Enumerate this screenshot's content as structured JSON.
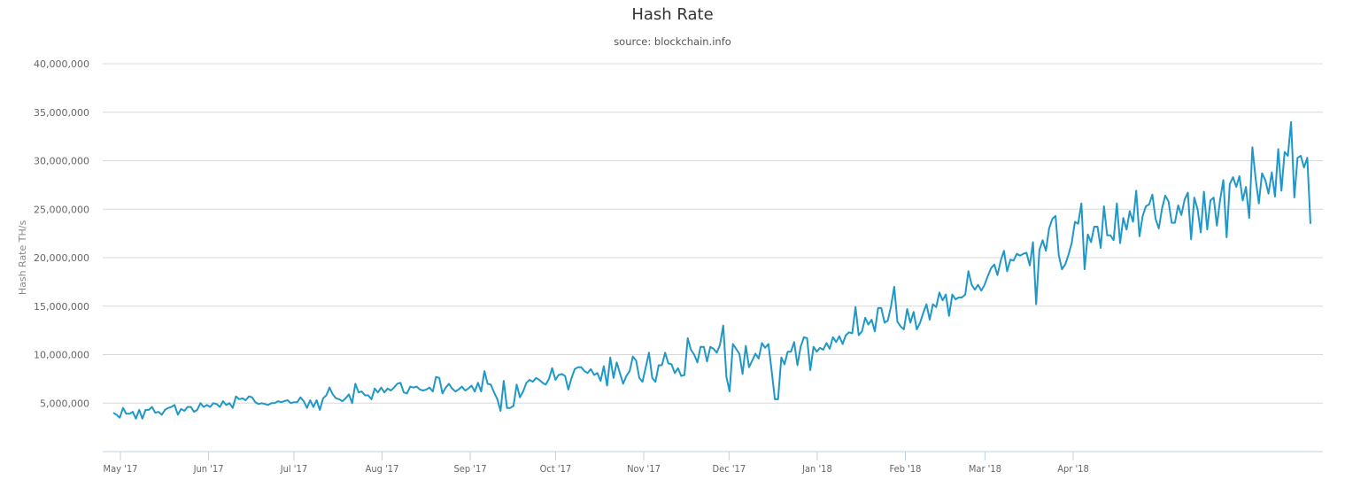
{
  "header": {
    "title": "Hash Rate",
    "subtitle": "source: blockchain.info"
  },
  "colors": {
    "line": "#1f98c7",
    "grid": "#d8d8d8",
    "axis": "#c0d0e0",
    "text": "#666666"
  },
  "chart_data": {
    "type": "line",
    "title": "Hash Rate",
    "subtitle": "source: blockchain.info",
    "xlabel": "",
    "ylabel": "Hash Rate TH/s",
    "ylim": [
      0,
      40000000
    ],
    "yticks": [
      5000000,
      10000000,
      15000000,
      20000000,
      25000000,
      30000000,
      35000000,
      40000000
    ],
    "ytick_labels": [
      "5,000,000",
      "10,000,000",
      "15,000,000",
      "20,000,000",
      "25,000,000",
      "30,000,000",
      "35,000,000",
      "40,000,000"
    ],
    "xticks": [
      {
        "label": "May '17",
        "day": 3
      },
      {
        "label": "Jun '17",
        "day": 34
      },
      {
        "label": "Jul '17",
        "day": 64
      },
      {
        "label": "Aug '17",
        "day": 95
      },
      {
        "label": "Sep '17",
        "day": 126
      },
      {
        "label": "Oct '17",
        "day": 156
      },
      {
        "label": "Nov '17",
        "day": 187
      },
      {
        "label": "Dec '17",
        "day": 217
      },
      {
        "label": "Jan '18",
        "day": 248
      },
      {
        "label": "Feb '18",
        "day": 279
      },
      {
        "label": "Mar '18",
        "day": 307
      },
      {
        "label": "Apr '18",
        "day": 338
      }
    ],
    "x_start": "2017-04-28",
    "x_step": "1 day",
    "grid": true,
    "legend": null,
    "series": [
      {
        "name": "Hash Rate",
        "values": [
          4000000,
          3800000,
          3500000,
          4500000,
          3900000,
          3900000,
          4100000,
          3400000,
          4300000,
          3400000,
          4300000,
          4300000,
          4600000,
          4000000,
          4100000,
          3800000,
          4300000,
          4500000,
          4600000,
          4800000,
          3800000,
          4400000,
          4200000,
          4600000,
          4600000,
          4100000,
          4300000,
          5000000,
          4600000,
          4800000,
          4600000,
          5000000,
          4900000,
          4600000,
          5200000,
          4800000,
          5000000,
          4500000,
          5700000,
          5400000,
          5500000,
          5300000,
          5700000,
          5600000,
          5100000,
          4900000,
          5000000,
          4900000,
          4800000,
          5000000,
          5000000,
          5200000,
          5100000,
          5200000,
          5300000,
          5000000,
          5100000,
          5100000,
          5600000,
          5200000,
          4500000,
          5300000,
          4600000,
          5300000,
          4300000,
          5500000,
          5800000,
          6600000,
          5900000,
          5500000,
          5400000,
          5200000,
          5500000,
          5900000,
          5000000,
          7000000,
          6100000,
          6200000,
          5800000,
          5800000,
          5400000,
          6500000,
          6100000,
          6600000,
          6100000,
          6500000,
          6300000,
          6600000,
          7000000,
          7100000,
          6100000,
          6000000,
          6700000,
          6600000,
          6700000,
          6400000,
          6300000,
          6400000,
          6600000,
          6200000,
          7700000,
          7600000,
          6000000,
          6600000,
          7000000,
          6500000,
          6200000,
          6400000,
          6700000,
          6300000,
          6500000,
          6800000,
          6200000,
          7100000,
          6200000,
          8300000,
          7000000,
          6900000,
          6100000,
          5400000,
          4200000,
          7300000,
          4500000,
          4500000,
          4700000,
          6900000,
          5600000,
          6200000,
          7100000,
          7400000,
          7200000,
          7600000,
          7400000,
          7100000,
          6900000,
          7500000,
          8600000,
          7400000,
          7900000,
          8000000,
          7800000,
          6400000,
          7600000,
          8500000,
          8700000,
          8700000,
          8300000,
          8100000,
          8500000,
          7900000,
          8100000,
          7300000,
          8800000,
          6800000,
          9700000,
          7600000,
          9200000,
          8100000,
          7000000,
          7800000,
          8300000,
          9800000,
          9400000,
          7600000,
          7200000,
          8700000,
          10200000,
          7600000,
          7200000,
          8900000,
          8900000,
          10200000,
          9100000,
          9000000,
          8100000,
          8600000,
          7800000,
          7900000,
          11700000,
          10500000,
          10000000,
          9200000,
          10800000,
          10800000,
          9300000,
          10800000,
          10600000,
          10200000,
          11000000,
          13000000,
          7700000,
          6200000,
          11100000,
          10600000,
          10100000,
          8000000,
          10900000,
          8700000,
          9400000,
          10100000,
          9600000,
          11200000,
          10700000,
          11100000,
          8400000,
          5400000,
          5400000,
          9700000,
          9000000,
          10300000,
          10300000,
          11300000,
          8900000,
          10800000,
          11800000,
          11700000,
          8400000,
          10800000,
          10300000,
          10700000,
          10500000,
          11200000,
          10600000,
          11800000,
          11300000,
          11900000,
          11100000,
          12000000,
          12300000,
          12200000,
          14900000,
          12000000,
          12400000,
          13800000,
          13100000,
          13600000,
          12400000,
          14800000,
          14800000,
          13300000,
          13500000,
          15000000,
          17000000,
          13400000,
          12900000,
          12600000,
          14700000,
          13300000,
          14400000,
          12600000,
          13300000,
          14300000,
          15200000,
          13600000,
          15200000,
          14900000,
          16400000,
          15600000,
          16200000,
          14000000,
          16200000,
          15700000,
          15900000,
          15900000,
          16200000,
          18600000,
          17200000,
          16700000,
          17200000,
          16600000,
          17200000,
          18100000,
          18900000,
          19300000,
          18200000,
          19700000,
          20700000,
          18600000,
          19800000,
          19700000,
          20400000,
          20200000,
          20400000,
          20500000,
          19200000,
          21600000,
          15200000,
          20800000,
          21800000,
          20700000,
          23000000,
          24000000,
          24300000,
          20200000,
          18800000,
          19300000,
          20300000,
          21500000,
          23700000,
          23500000,
          25600000,
          18800000,
          22400000,
          21600000,
          23200000,
          23200000,
          21000000,
          25300000,
          22300000,
          22300000,
          21800000,
          25600000,
          21500000,
          24100000,
          22900000,
          24800000,
          23700000,
          26900000,
          22200000,
          24300000,
          25300000,
          25500000,
          26500000,
          24000000,
          23000000,
          25100000,
          26400000,
          25800000,
          23600000,
          23600000,
          25400000,
          24400000,
          26000000,
          26700000,
          21900000,
          26200000,
          25000000,
          22600000,
          26800000,
          22900000,
          25900000,
          26200000,
          23300000,
          26000000,
          28000000,
          22100000,
          27600000,
          28300000,
          27300000,
          28400000,
          25900000,
          27300000,
          24100000,
          31400000,
          28200000,
          25600000,
          28700000,
          28000000,
          26600000,
          28800000,
          26300000,
          31200000,
          26900000,
          30900000,
          30500000,
          34000000,
          26200000,
          30300000,
          30500000,
          29300000,
          30300000,
          23500000
        ]
      }
    ]
  }
}
